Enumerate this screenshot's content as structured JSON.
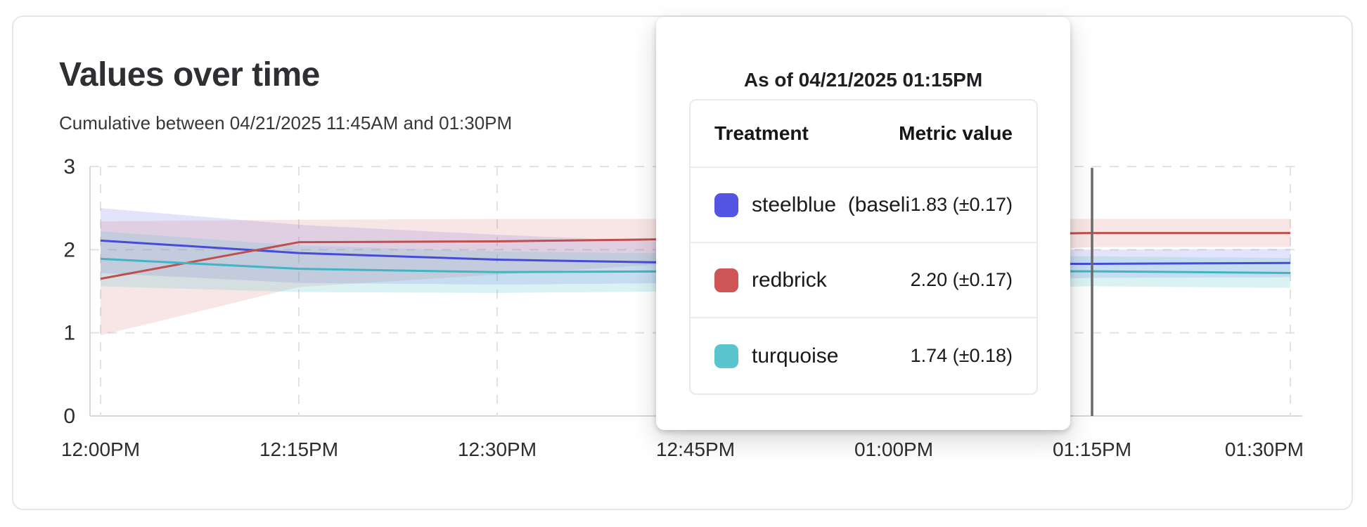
{
  "page": {
    "title": "Values over time",
    "subtitle": "Cumulative between 04/21/2025 11:45AM and 01:30PM"
  },
  "tooltip": {
    "heading": "As of 04/21/2025 01:15PM",
    "columns": {
      "treatment": "Treatment",
      "metric": "Metric value"
    },
    "rows": [
      {
        "label": "steelblue  (baseli",
        "value": "1.83 (±0.17)",
        "color": "#5456e3"
      },
      {
        "label": "redbrick",
        "value": "2.20 (±0.17)",
        "color": "#cd5555"
      },
      {
        "label": "turquoise",
        "value": "1.74 (±0.18)",
        "color": "#5bc5cf"
      }
    ]
  },
  "chart_data": {
    "type": "line",
    "title": "Values over time",
    "subtitle": "Cumulative between 04/21/2025 11:45AM and 01:30PM",
    "xlabel": "",
    "ylabel": "",
    "x_tick_labels": [
      "12:00PM",
      "12:15PM",
      "12:30PM",
      "12:45PM",
      "01:00PM",
      "01:15PM",
      "01:30PM"
    ],
    "y_tick_labels": [
      "0",
      "1",
      "2",
      "3"
    ],
    "y_ticks": [
      0,
      1,
      2,
      3
    ],
    "ylim": [
      0,
      3
    ],
    "grid": "dashed",
    "legend_position": "none",
    "cursor_tick": "01:15PM",
    "cursor_tick_index": 5,
    "cursor_color": "#6b6b6b",
    "axis_color": "#d8d8d8",
    "gridline_color": "#e2e2e2",
    "tick_label_color": "#2b2d30",
    "series": [
      {
        "name": "steelblue (baseline)",
        "line_color": "#474cd8",
        "band_color": "rgba(90,95,230,0.17)",
        "values": [
          2.11,
          1.96,
          1.88,
          1.84,
          1.83,
          1.83,
          1.84
        ],
        "band_upper": [
          2.5,
          2.3,
          2.18,
          2.08,
          2.02,
          2.0,
          2.01
        ],
        "band_lower": [
          1.72,
          1.6,
          1.58,
          1.6,
          1.63,
          1.66,
          1.67
        ]
      },
      {
        "name": "redbrick",
        "line_color": "#bf4f4d",
        "band_color": "rgba(205,85,85,0.15)",
        "values": [
          1.65,
          2.09,
          2.1,
          2.13,
          2.17,
          2.2,
          2.2
        ],
        "band_upper": [
          2.34,
          2.36,
          2.37,
          2.37,
          2.37,
          2.37,
          2.37
        ],
        "band_lower": [
          0.97,
          1.55,
          1.7,
          1.85,
          1.95,
          2.03,
          2.03
        ]
      },
      {
        "name": "turquoise",
        "line_color": "#42b4c4",
        "band_color": "rgba(91,197,207,0.22)",
        "values": [
          1.89,
          1.77,
          1.73,
          1.74,
          1.74,
          1.74,
          1.72
        ],
        "band_upper": [
          2.22,
          2.05,
          1.98,
          1.95,
          1.93,
          1.92,
          1.9
        ],
        "band_lower": [
          1.56,
          1.49,
          1.48,
          1.5,
          1.52,
          1.56,
          1.54
        ]
      }
    ]
  }
}
